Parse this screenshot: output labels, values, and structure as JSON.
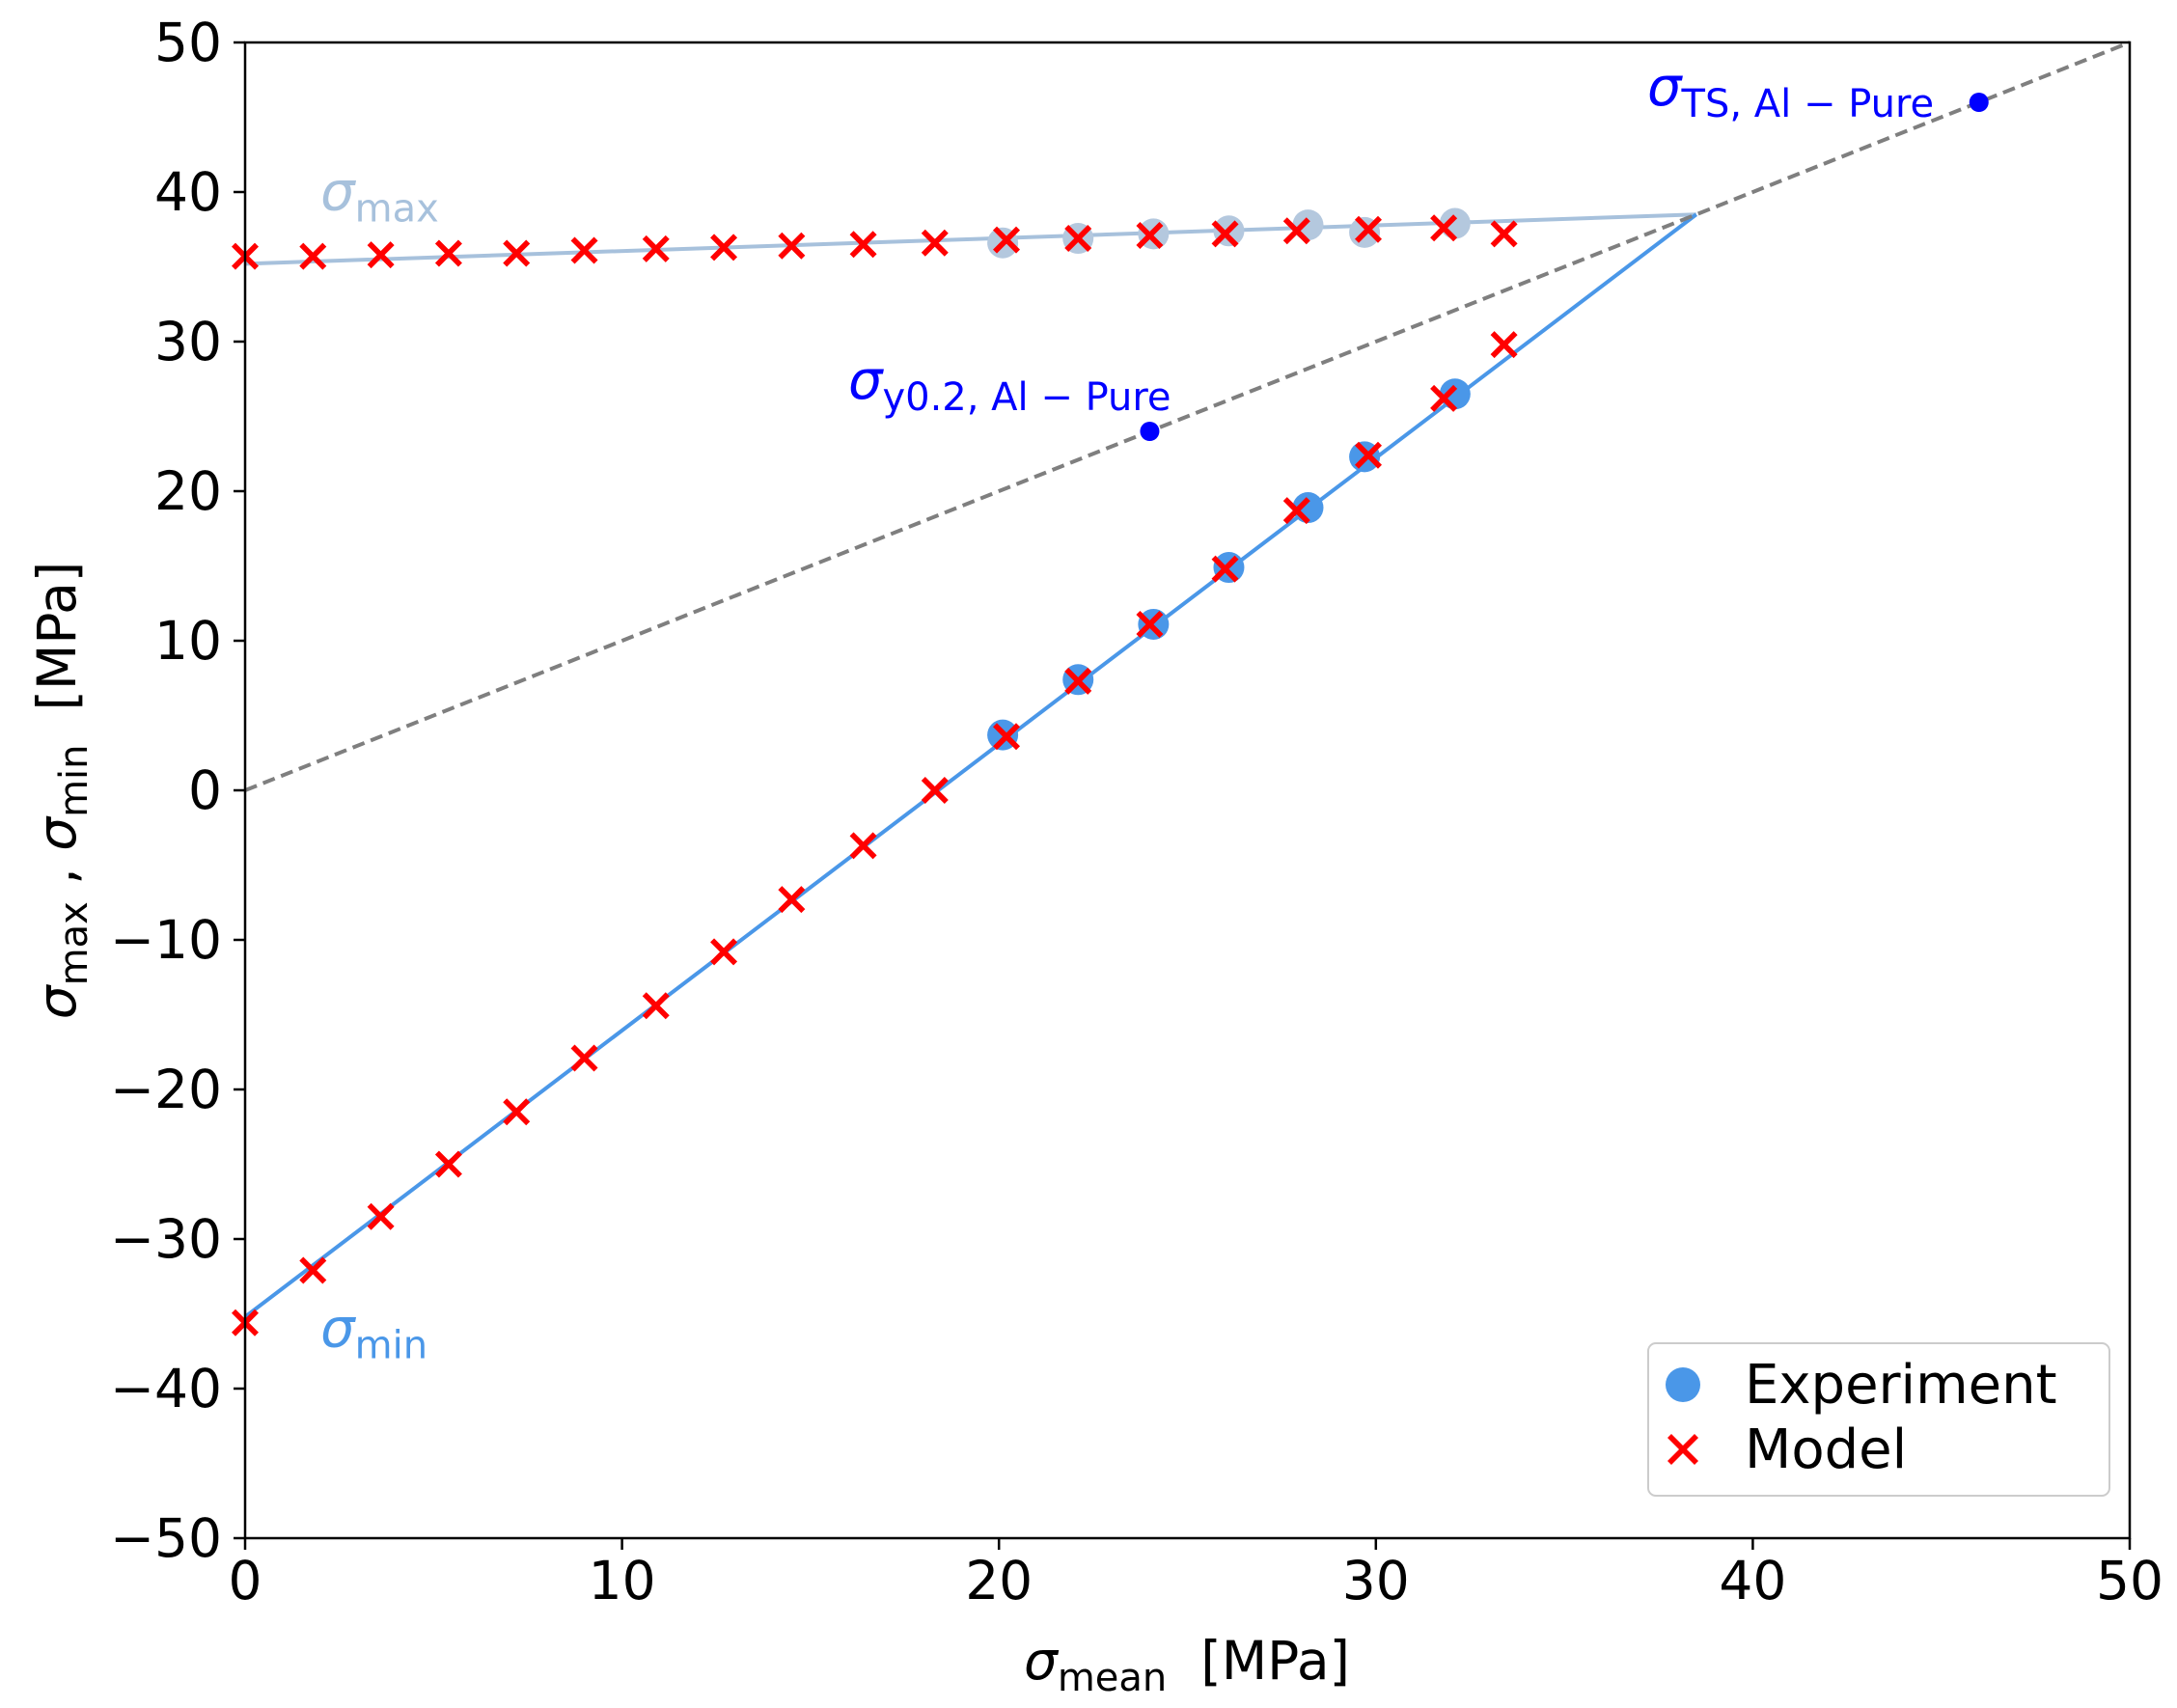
{
  "chart_data": {
    "type": "scatter",
    "xlabel": {
      "symbol": "σ",
      "subscript": "mean",
      "unit": "[MPa]"
    },
    "ylabel": {
      "sym1": "σ",
      "sub1": "max",
      "sep": ",",
      "sym2": "σ",
      "sub2": "min",
      "unit": "[MPa]"
    },
    "xlim": [
      0,
      50
    ],
    "ylim": [
      -50,
      50
    ],
    "xticks": [
      0,
      10,
      20,
      30,
      40,
      50
    ],
    "yticks": [
      -50,
      -40,
      -30,
      -20,
      -10,
      0,
      10,
      20,
      30,
      40,
      50
    ],
    "xtick_labels": [
      "0",
      "10",
      "20",
      "30",
      "40",
      "50"
    ],
    "ytick_labels": [
      "−50",
      "−40",
      "−30",
      "−20",
      "−10",
      "0",
      "10",
      "20",
      "30",
      "40",
      "50"
    ],
    "grid": false,
    "legend_position": "bottom-right",
    "legend": [
      {
        "label": "Experiment",
        "marker": "circle",
        "color": "#4a97e8"
      },
      {
        "label": "Model",
        "marker": "x",
        "color": "#ff0000"
      }
    ],
    "colors": {
      "max_line": "#a7c1dc",
      "min_line": "#4a97e8",
      "experiment_max": "#b4c8de",
      "experiment_min": "#4a97e8",
      "model": "#ff0000",
      "reference_line": "#7f7f7f",
      "material_points": "#0000ff"
    },
    "series": [
      {
        "name": "σmax line",
        "kind": "line",
        "x": [
          0,
          38.5
        ],
        "y": [
          35.2,
          38.5
        ]
      },
      {
        "name": "σmin line",
        "kind": "line",
        "x": [
          0,
          38.5
        ],
        "y": [
          -35.2,
          38.5
        ]
      },
      {
        "name": "Reference σmax = σmean",
        "kind": "dashed",
        "x": [
          0,
          50
        ],
        "y": [
          0,
          50
        ]
      },
      {
        "name": "Experiment σmax",
        "kind": "experiment",
        "x": [
          20.1,
          22.1,
          24.1,
          26.1,
          28.2,
          29.7,
          32.1
        ],
        "y": [
          36.6,
          36.9,
          37.2,
          37.4,
          37.8,
          37.3,
          37.9
        ]
      },
      {
        "name": "Experiment σmin",
        "kind": "experiment",
        "x": [
          20.1,
          22.1,
          24.1,
          26.1,
          28.2,
          29.7,
          32.1
        ],
        "y": [
          3.7,
          7.4,
          11.1,
          14.9,
          18.9,
          22.3,
          26.5
        ]
      },
      {
        "name": "Model σmax",
        "kind": "model",
        "x": [
          0,
          1.8,
          3.6,
          5.4,
          7.2,
          9.0,
          10.9,
          12.7,
          14.5,
          16.4,
          18.3,
          20.2,
          22.1,
          24.0,
          26.0,
          27.9,
          29.8,
          31.8,
          33.4
        ],
        "y": [
          35.7,
          35.7,
          35.8,
          35.9,
          35.9,
          36.1,
          36.2,
          36.3,
          36.4,
          36.5,
          36.6,
          36.8,
          36.9,
          37.1,
          37.2,
          37.4,
          37.5,
          37.6,
          37.2
        ]
      },
      {
        "name": "Model σmin",
        "kind": "model",
        "x": [
          0,
          1.8,
          3.6,
          5.4,
          7.2,
          9.0,
          10.9,
          12.7,
          14.5,
          16.4,
          18.3,
          20.2,
          22.1,
          24.0,
          26.0,
          27.9,
          29.8,
          31.8,
          33.4
        ],
        "y": [
          -35.6,
          -32.1,
          -28.5,
          -25.0,
          -21.5,
          -17.9,
          -14.4,
          -10.8,
          -7.3,
          -3.7,
          0.0,
          3.6,
          7.3,
          11.1,
          14.8,
          18.7,
          22.4,
          26.2,
          29.8
        ]
      },
      {
        "name": "Material points",
        "kind": "material",
        "x": [
          24.0,
          46.0
        ],
        "y": [
          24.0,
          46.0
        ]
      }
    ],
    "annotations": [
      {
        "id": "sigma_max",
        "symbol": "σ",
        "subscript": "max",
        "x": 2.0,
        "y": 38.8,
        "color": "#a7c1dc"
      },
      {
        "id": "sigma_min",
        "symbol": "σ",
        "subscript": "min",
        "x": 2.0,
        "y": -37.2,
        "color": "#4a97e8"
      },
      {
        "id": "y02",
        "symbol": "σ",
        "subscript": "y0.2, Al − Pure",
        "x": 16.0,
        "y": 26.2,
        "color": "#0000ff"
      },
      {
        "id": "ts",
        "symbol": "σ",
        "subscript": "TS, Al − Pure",
        "x": 37.2,
        "y": 45.8,
        "color": "#0000ff"
      }
    ]
  }
}
